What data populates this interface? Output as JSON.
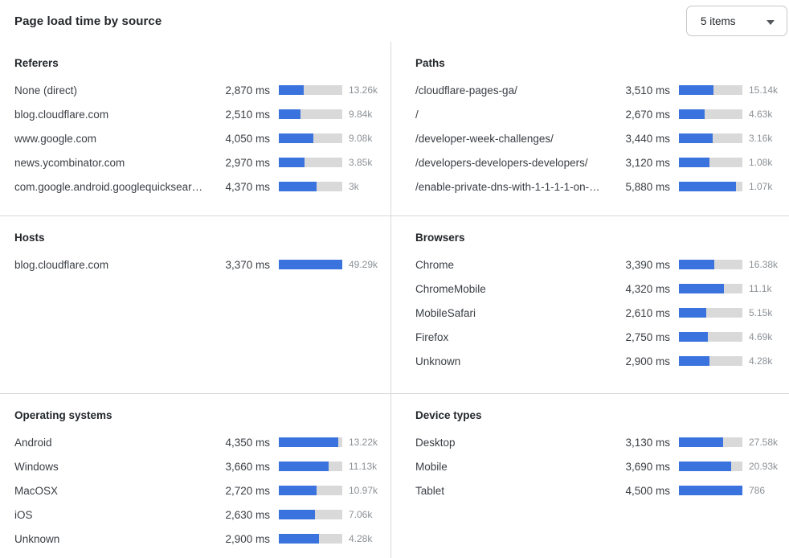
{
  "header": {
    "title": "Page load time by source",
    "items_select": {
      "value": "5 items"
    }
  },
  "colors": {
    "bar_fill": "#3b73de",
    "bar_track": "#d9d9d9",
    "divider": "#d9d9d9",
    "label_text": "#3a3e44",
    "count_text": "#8c9196",
    "heading_text": "#23262a"
  },
  "sections": [
    {
      "title": "Referers",
      "rows": [
        {
          "label": "None (direct)",
          "ms_value": 2870,
          "ms": "2,870 ms",
          "count": "13.26k",
          "pct": 39
        },
        {
          "label": "blog.cloudflare.com",
          "ms_value": 2510,
          "ms": "2,510 ms",
          "count": "9.84k",
          "pct": 34
        },
        {
          "label": "www.google.com",
          "ms_value": 4050,
          "ms": "4,050 ms",
          "count": "9.08k",
          "pct": 55
        },
        {
          "label": "news.ycombinator.com",
          "ms_value": 2970,
          "ms": "2,970 ms",
          "count": "3.85k",
          "pct": 41
        },
        {
          "label": "com.google.android.googlequicksearc…",
          "ms_value": 4370,
          "ms": "4,370 ms",
          "count": "3k",
          "pct": 60
        }
      ]
    },
    {
      "title": "Paths",
      "rows": [
        {
          "label": "/cloudflare-pages-ga/",
          "ms_value": 3510,
          "ms": "3,510 ms",
          "count": "15.14k",
          "pct": 54
        },
        {
          "label": "/",
          "ms_value": 2670,
          "ms": "2,670 ms",
          "count": "4.63k",
          "pct": 41
        },
        {
          "label": "/developer-week-challenges/",
          "ms_value": 3440,
          "ms": "3,440 ms",
          "count": "3.16k",
          "pct": 53
        },
        {
          "label": "/developers-developers-developers/",
          "ms_value": 3120,
          "ms": "3,120 ms",
          "count": "1.08k",
          "pct": 48
        },
        {
          "label": "/enable-private-dns-with-1-1-1-1-on-…",
          "ms_value": 5880,
          "ms": "5,880 ms",
          "count": "1.07k",
          "pct": 90
        }
      ]
    },
    {
      "title": "Hosts",
      "rows": [
        {
          "label": "blog.cloudflare.com",
          "ms_value": 3370,
          "ms": "3,370 ms",
          "count": "49.29k",
          "pct": 100
        }
      ]
    },
    {
      "title": "Browsers",
      "rows": [
        {
          "label": "Chrome",
          "ms_value": 3390,
          "ms": "3,390 ms",
          "count": "16.38k",
          "pct": 56
        },
        {
          "label": "ChromeMobile",
          "ms_value": 4320,
          "ms": "4,320 ms",
          "count": "11.1k",
          "pct": 71
        },
        {
          "label": "MobileSafari",
          "ms_value": 2610,
          "ms": "2,610 ms",
          "count": "5.15k",
          "pct": 43
        },
        {
          "label": "Firefox",
          "ms_value": 2750,
          "ms": "2,750 ms",
          "count": "4.69k",
          "pct": 45
        },
        {
          "label": "Unknown",
          "ms_value": 2900,
          "ms": "2,900 ms",
          "count": "4.28k",
          "pct": 48
        }
      ]
    },
    {
      "title": "Operating systems",
      "rows": [
        {
          "label": "Android",
          "ms_value": 4350,
          "ms": "4,350 ms",
          "count": "13.22k",
          "pct": 94
        },
        {
          "label": "Windows",
          "ms_value": 3660,
          "ms": "3,660 ms",
          "count": "11.13k",
          "pct": 79
        },
        {
          "label": "MacOSX",
          "ms_value": 2720,
          "ms": "2,720 ms",
          "count": "10.97k",
          "pct": 59
        },
        {
          "label": "iOS",
          "ms_value": 2630,
          "ms": "2,630 ms",
          "count": "7.06k",
          "pct": 57
        },
        {
          "label": "Unknown",
          "ms_value": 2900,
          "ms": "2,900 ms",
          "count": "4.28k",
          "pct": 63
        }
      ]
    },
    {
      "title": "Device types",
      "rows": [
        {
          "label": "Desktop",
          "ms_value": 3130,
          "ms": "3,130 ms",
          "count": "27.58k",
          "pct": 70
        },
        {
          "label": "Mobile",
          "ms_value": 3690,
          "ms": "3,690 ms",
          "count": "20.93k",
          "pct": 82
        },
        {
          "label": "Tablet",
          "ms_value": 4500,
          "ms": "4,500 ms",
          "count": "786",
          "pct": 100
        }
      ]
    }
  ]
}
